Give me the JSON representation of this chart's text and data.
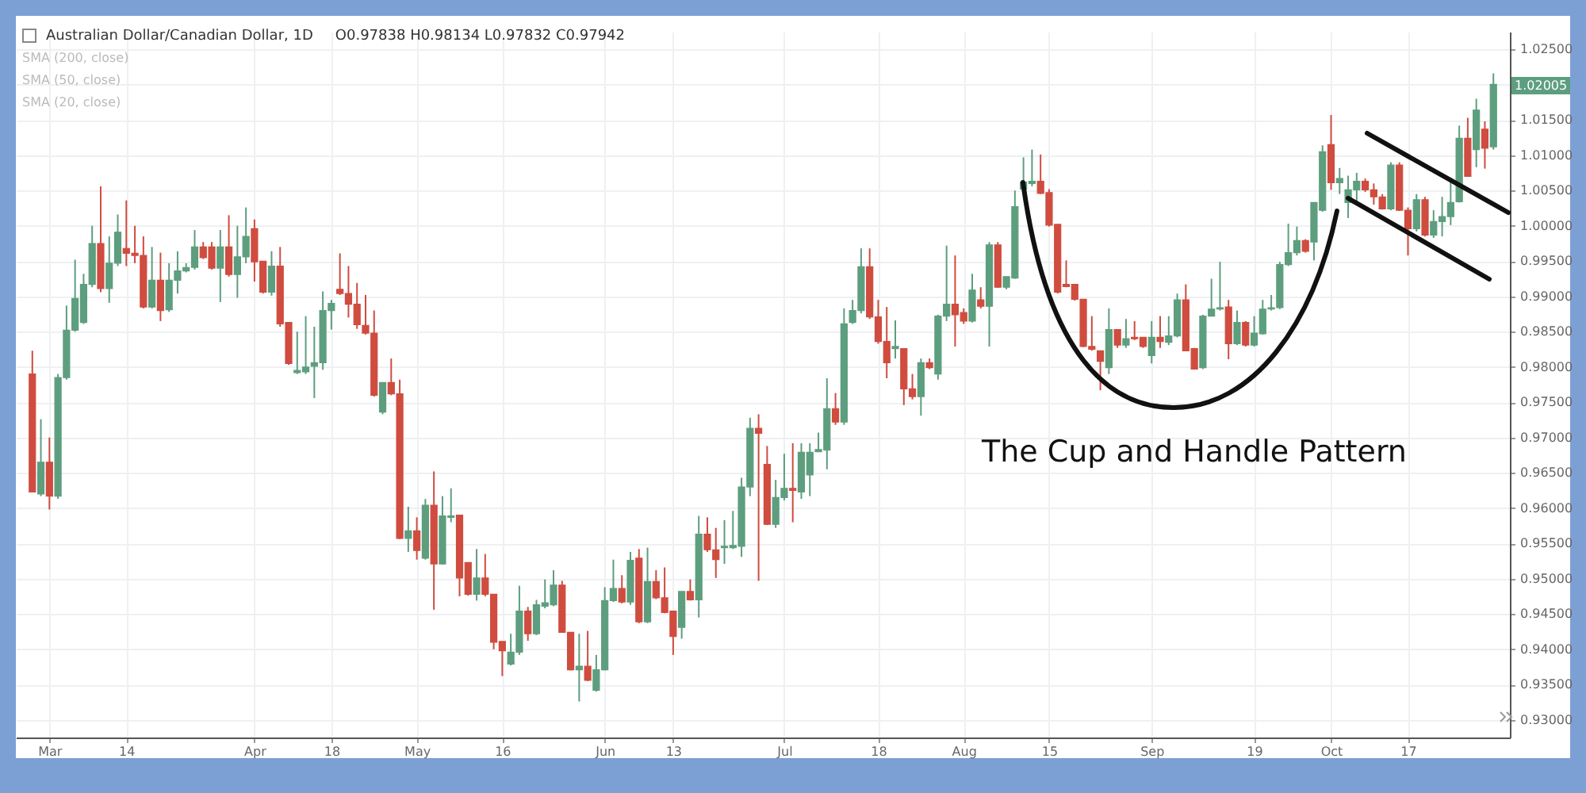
{
  "chart_data": {
    "type": "candlestick",
    "title": "Australian Dollar/Canadian Dollar, 1D",
    "subtitle": "O0.97838 H0.98134 L0.97832 C0.97942",
    "annotations": [
      "SMA (200, close)",
      "SMA (50, close)",
      "SMA (20, close)",
      "The Cup and Handle Pattern",
      "1.02005"
    ],
    "grid": true,
    "ylim": [
      0.9275,
      1.0275
    ],
    "yticks": [
      {
        "value": 0.93,
        "label": "0.93000"
      },
      {
        "value": 0.935,
        "label": "0.93500"
      },
      {
        "value": 0.94,
        "label": "0.94000"
      },
      {
        "value": 0.945,
        "label": "0.94500"
      },
      {
        "value": 0.95,
        "label": "0.95000"
      },
      {
        "value": 0.955,
        "label": "0.95500"
      },
      {
        "value": 0.96,
        "label": "0.96000"
      },
      {
        "value": 0.965,
        "label": "0.96500"
      },
      {
        "value": 0.97,
        "label": "0.97000"
      },
      {
        "value": 0.975,
        "label": "0.97500"
      },
      {
        "value": 0.98,
        "label": "0.98000"
      },
      {
        "value": 0.985,
        "label": "0.98500"
      },
      {
        "value": 0.99,
        "label": "0.99000"
      },
      {
        "value": 0.995,
        "label": "0.99500"
      },
      {
        "value": 1.0,
        "label": "1.00000"
      },
      {
        "value": 1.005,
        "label": "1.00500"
      },
      {
        "value": 1.01,
        "label": "1.01000"
      },
      {
        "value": 1.015,
        "label": "1.01500"
      },
      {
        "value": 1.02,
        "label": null
      },
      {
        "value": 1.025,
        "label": "1.02500"
      }
    ],
    "categories": [
      null,
      null,
      "Mar",
      null,
      null,
      null,
      null,
      null,
      null,
      null,
      null,
      "14",
      null,
      null,
      null,
      null,
      null,
      null,
      null,
      null,
      null,
      null,
      null,
      null,
      null,
      null,
      "Apr",
      null,
      null,
      null,
      null,
      null,
      null,
      null,
      null,
      "18",
      null,
      null,
      null,
      null,
      null,
      null,
      null,
      null,
      null,
      "May",
      null,
      null,
      null,
      null,
      null,
      null,
      null,
      null,
      null,
      "16",
      null,
      null,
      null,
      null,
      null,
      null,
      null,
      null,
      null,
      null,
      null,
      "Jun",
      null,
      null,
      null,
      null,
      null,
      null,
      null,
      "13",
      null,
      null,
      null,
      null,
      null,
      null,
      null,
      null,
      null,
      null,
      null,
      null,
      "Jul",
      null,
      null,
      null,
      null,
      null,
      null,
      null,
      null,
      null,
      null,
      "18",
      null,
      null,
      null,
      null,
      null,
      null,
      null,
      null,
      null,
      "Aug",
      null,
      null,
      null,
      null,
      null,
      null,
      null,
      null,
      null,
      "15",
      null,
      null,
      null,
      null,
      null,
      null,
      null,
      null,
      null,
      null,
      null,
      "Sep",
      null,
      null,
      null,
      null,
      null,
      null,
      null,
      null,
      null,
      null,
      null,
      "19",
      null,
      null,
      null,
      null,
      null,
      null,
      null,
      null,
      "Oct",
      null,
      null,
      null,
      null,
      null,
      null,
      null,
      null,
      "17",
      null,
      null,
      null,
      null,
      null,
      null,
      null,
      null,
      null,
      null
    ],
    "ohlc": [
      [
        0.979,
        0.9823,
        0.9623,
        0.9623
      ],
      [
        0.962,
        0.9726,
        0.9617,
        0.9665
      ],
      [
        0.9665,
        0.97,
        0.9598,
        0.9617
      ],
      [
        0.9617,
        0.979,
        0.9613,
        0.9785
      ],
      [
        0.9785,
        0.9887,
        0.9782,
        0.9852
      ],
      [
        0.9852,
        0.9952,
        0.985,
        0.9897
      ],
      [
        0.9863,
        0.9932,
        0.9861,
        0.9917
      ],
      [
        0.9917,
        1.0,
        0.9913,
        0.9975
      ],
      [
        0.9975,
        1.0056,
        0.9906,
        0.9911
      ],
      [
        0.9911,
        0.9985,
        0.9891,
        0.9947
      ],
      [
        0.9947,
        1.0016,
        0.9943,
        0.9991
      ],
      [
        0.9968,
        1.0036,
        0.9943,
        0.9961
      ],
      [
        0.9961,
        1.0,
        0.9947,
        0.9958
      ],
      [
        0.9958,
        0.9985,
        0.9883,
        0.9885
      ],
      [
        0.9885,
        0.997,
        0.9883,
        0.9923
      ],
      [
        0.9923,
        0.9962,
        0.9865,
        0.988
      ],
      [
        0.9881,
        0.9947,
        0.9878,
        0.9923
      ],
      [
        0.9923,
        0.9964,
        0.9904,
        0.9936
      ],
      [
        0.9936,
        0.9947,
        0.9934,
        0.9941
      ],
      [
        0.9941,
        0.9994,
        0.9938,
        0.997
      ],
      [
        0.997,
        0.9977,
        0.9953,
        0.9955
      ],
      [
        0.997,
        0.9977,
        0.9938,
        0.994
      ],
      [
        0.994,
        0.9994,
        0.9892,
        0.997
      ],
      [
        0.997,
        1.0015,
        0.9928,
        0.9931
      ],
      [
        0.9931,
        1.0,
        0.9898,
        0.9956
      ],
      [
        0.9956,
        1.0026,
        0.9947,
        0.9985
      ],
      [
        0.9996,
        1.0009,
        0.9921,
        0.9949
      ],
      [
        0.995,
        0.995,
        0.9904,
        0.9906
      ],
      [
        0.9906,
        0.9964,
        0.9901,
        0.9943
      ],
      [
        0.9943,
        0.997,
        0.9857,
        0.9861
      ],
      [
        0.9863,
        0.9863,
        0.9803,
        0.9805
      ],
      [
        0.9792,
        0.985,
        0.979,
        0.9795
      ],
      [
        0.9793,
        0.9872,
        0.979,
        0.98
      ],
      [
        0.9801,
        0.9857,
        0.9756,
        0.9806
      ],
      [
        0.9806,
        0.9907,
        0.9796,
        0.988
      ],
      [
        0.988,
        0.9895,
        0.9853,
        0.989
      ],
      [
        0.991,
        0.9961,
        0.9902,
        0.9904
      ],
      [
        0.9904,
        0.9943,
        0.987,
        0.9889
      ],
      [
        0.9889,
        0.9919,
        0.9854,
        0.986
      ],
      [
        0.9859,
        0.9902,
        0.9846,
        0.9848
      ],
      [
        0.9848,
        0.988,
        0.9758,
        0.976
      ],
      [
        0.9736,
        0.9778,
        0.9733,
        0.9778
      ],
      [
        0.9778,
        0.9812,
        0.976,
        0.9762
      ],
      [
        0.9762,
        0.9782,
        0.9556,
        0.9557
      ],
      [
        0.9557,
        0.9602,
        0.9538,
        0.9568
      ],
      [
        0.9568,
        0.9587,
        0.9527,
        0.954
      ],
      [
        0.9529,
        0.9613,
        0.9527,
        0.9604
      ],
      [
        0.9604,
        0.9652,
        0.9456,
        0.9521
      ],
      [
        0.9521,
        0.9617,
        0.952,
        0.9589
      ],
      [
        0.9587,
        0.9628,
        0.958,
        0.9589
      ],
      [
        0.959,
        0.959,
        0.9475,
        0.9501
      ],
      [
        0.9523,
        0.9523,
        0.9476,
        0.9478
      ],
      [
        0.9478,
        0.9542,
        0.9469,
        0.9501
      ],
      [
        0.9501,
        0.9535,
        0.9475,
        0.9478
      ],
      [
        0.9478,
        0.9478,
        0.94,
        0.941
      ],
      [
        0.9411,
        0.9411,
        0.9362,
        0.9398
      ],
      [
        0.9379,
        0.9422,
        0.9377,
        0.9396
      ],
      [
        0.9396,
        0.949,
        0.9392,
        0.9454
      ],
      [
        0.9454,
        0.946,
        0.9412,
        0.9422
      ],
      [
        0.9422,
        0.947,
        0.942,
        0.9463
      ],
      [
        0.9461,
        0.9499,
        0.9458,
        0.9466
      ],
      [
        0.9463,
        0.9512,
        0.9461,
        0.9491
      ],
      [
        0.9491,
        0.9497,
        0.9424,
        0.9424
      ],
      [
        0.9424,
        0.9424,
        0.937,
        0.9371
      ],
      [
        0.9371,
        0.9422,
        0.9326,
        0.9376
      ],
      [
        0.9376,
        0.9426,
        0.9355,
        0.9356
      ],
      [
        0.9342,
        0.9392,
        0.934,
        0.9371
      ],
      [
        0.9371,
        0.9488,
        0.937,
        0.9469
      ],
      [
        0.9469,
        0.9527,
        0.9467,
        0.9486
      ],
      [
        0.9486,
        0.9505,
        0.9465,
        0.9467
      ],
      [
        0.9467,
        0.9538,
        0.9463,
        0.9526
      ],
      [
        0.9529,
        0.9542,
        0.9437,
        0.9439
      ],
      [
        0.9439,
        0.9544,
        0.9437,
        0.9496
      ],
      [
        0.9496,
        0.9512,
        0.9471,
        0.9473
      ],
      [
        0.9473,
        0.9516,
        0.9451,
        0.9452
      ],
      [
        0.9454,
        0.9454,
        0.9392,
        0.9418
      ],
      [
        0.9431,
        0.9482,
        0.9415,
        0.9482
      ],
      [
        0.9482,
        0.9499,
        0.9469,
        0.947
      ],
      [
        0.947,
        0.9589,
        0.9445,
        0.9563
      ],
      [
        0.9563,
        0.9587,
        0.9538,
        0.9541
      ],
      [
        0.9541,
        0.9572,
        0.9501,
        0.9527
      ],
      [
        0.9544,
        0.9583,
        0.9521,
        0.9546
      ],
      [
        0.9544,
        0.9596,
        0.9542,
        0.9547
      ],
      [
        0.9546,
        0.9643,
        0.9531,
        0.963
      ],
      [
        0.963,
        0.9728,
        0.9617,
        0.9713
      ],
      [
        0.9713,
        0.9733,
        0.9497,
        0.9706
      ],
      [
        0.9662,
        0.9688,
        0.9576,
        0.9577
      ],
      [
        0.9577,
        0.964,
        0.9572,
        0.9615
      ],
      [
        0.9615,
        0.9677,
        0.9611,
        0.9628
      ],
      [
        0.9628,
        0.9692,
        0.958,
        0.9625
      ],
      [
        0.9623,
        0.9692,
        0.9613,
        0.9679
      ],
      [
        0.9647,
        0.9692,
        0.9617,
        0.9679
      ],
      [
        0.968,
        0.9707,
        0.968,
        0.9683
      ],
      [
        0.9682,
        0.9784,
        0.9655,
        0.9741
      ],
      [
        0.9741,
        0.9763,
        0.9718,
        0.9722
      ],
      [
        0.9722,
        0.9883,
        0.9718,
        0.9861
      ],
      [
        0.9863,
        0.9895,
        0.9861,
        0.988
      ],
      [
        0.988,
        0.9968,
        0.9876,
        0.9942
      ],
      [
        0.9942,
        0.9968,
        0.9868,
        0.9871
      ],
      [
        0.9871,
        0.9895,
        0.9833,
        0.9836
      ],
      [
        0.9836,
        0.9885,
        0.9784,
        0.9806
      ],
      [
        0.9826,
        0.9866,
        0.9812,
        0.9829
      ],
      [
        0.9826,
        0.9826,
        0.9746,
        0.9769
      ],
      [
        0.9769,
        0.979,
        0.9754,
        0.9758
      ],
      [
        0.9758,
        0.9812,
        0.9731,
        0.9806
      ],
      [
        0.9806,
        0.9812,
        0.9797,
        0.9799
      ],
      [
        0.979,
        0.9874,
        0.9782,
        0.9872
      ],
      [
        0.9872,
        0.9972,
        0.9865,
        0.9889
      ],
      [
        0.9889,
        0.9958,
        0.9829,
        0.9874
      ],
      [
        0.9877,
        0.9883,
        0.9861,
        0.9865
      ],
      [
        0.9865,
        0.9932,
        0.9863,
        0.9909
      ],
      [
        0.9895,
        0.9913,
        0.9883,
        0.9886
      ],
      [
        0.9886,
        0.9977,
        0.9829,
        0.9973
      ],
      [
        0.9973,
        0.9977,
        0.9912,
        0.9913
      ],
      [
        0.9913,
        0.9928,
        0.991,
        0.9928
      ],
      [
        0.9926,
        1.005,
        0.9925,
        1.0027
      ],
      [
        1.0052,
        1.0097,
        1.0048,
        1.0062
      ],
      [
        1.006,
        1.0108,
        1.0056,
        1.0063
      ],
      [
        1.0063,
        1.0101,
        1.0045,
        1.0046
      ],
      [
        1.0047,
        1.0052,
        0.9999,
        1.0001
      ],
      [
        1.0002,
        1.0002,
        0.9904,
        0.9906
      ],
      [
        0.9917,
        0.9951,
        0.9913,
        0.9914
      ],
      [
        0.9917,
        0.9917,
        0.9894,
        0.9896
      ],
      [
        0.9896,
        0.9896,
        0.9828,
        0.9829
      ],
      [
        0.9829,
        0.9872,
        0.9823,
        0.9825
      ],
      [
        0.9823,
        0.9823,
        0.9767,
        0.9808
      ],
      [
        0.9799,
        0.9883,
        0.979,
        0.9853
      ],
      [
        0.9853,
        0.9853,
        0.9827,
        0.9831
      ],
      [
        0.9831,
        0.9868,
        0.9827,
        0.984
      ],
      [
        0.9842,
        0.9865,
        0.9838,
        0.984
      ],
      [
        0.9842,
        0.9842,
        0.9827,
        0.9829
      ],
      [
        0.9816,
        0.9865,
        0.9805,
        0.9842
      ],
      [
        0.9842,
        0.9872,
        0.9827,
        0.9836
      ],
      [
        0.9835,
        0.9872,
        0.9831,
        0.9844
      ],
      [
        0.9844,
        0.9904,
        0.9842,
        0.9895
      ],
      [
        0.9895,
        0.9917,
        0.9823,
        0.9823
      ],
      [
        0.9826,
        0.9827,
        0.9797,
        0.9797
      ],
      [
        0.9799,
        0.9874,
        0.9797,
        0.9872
      ],
      [
        0.9872,
        0.9925,
        0.9872,
        0.9882
      ],
      [
        0.9882,
        0.9949,
        0.988,
        0.9884
      ],
      [
        0.9885,
        0.9895,
        0.9811,
        0.9833
      ],
      [
        0.9833,
        0.988,
        0.9831,
        0.9863
      ],
      [
        0.9863,
        0.9865,
        0.9829,
        0.9831
      ],
      [
        0.9831,
        0.9872,
        0.9829,
        0.9848
      ],
      [
        0.9847,
        0.9895,
        0.9846,
        0.9882
      ],
      [
        0.9882,
        0.9902,
        0.988,
        0.9884
      ],
      [
        0.9884,
        0.9949,
        0.9882,
        0.9945
      ],
      [
        0.9945,
        1.0003,
        0.9943,
        0.9962
      ],
      [
        0.9962,
        0.9999,
        0.9958,
        0.9979
      ],
      [
        0.9979,
        0.9981,
        0.9962,
        0.9964
      ],
      [
        0.9977,
        1.0033,
        0.9951,
        1.0033
      ],
      [
        1.0022,
        1.0114,
        1.002,
        1.0105
      ],
      [
        1.0115,
        1.0157,
        1.0051,
        1.0061
      ],
      [
        1.0061,
        1.0082,
        1.0045,
        1.0067
      ],
      [
        1.0033,
        1.0071,
        1.0011,
        1.0051
      ],
      [
        1.0051,
        1.0075,
        1.0031,
        1.0063
      ],
      [
        1.0063,
        1.0067,
        1.0048,
        1.0051
      ],
      [
        1.0051,
        1.006,
        1.003,
        1.0041
      ],
      [
        1.0041,
        1.0045,
        1.0023,
        1.0024
      ],
      [
        1.0024,
        1.009,
        1.0022,
        1.0086
      ],
      [
        1.0086,
        1.009,
        1.0021,
        1.0022
      ],
      [
        1.0022,
        1.0026,
        0.9958,
        0.9996
      ],
      [
        0.9996,
        1.0045,
        0.9992,
        1.0037
      ],
      [
        1.0037,
        1.0041,
        0.9985,
        0.9987
      ],
      [
        0.9987,
        1.0022,
        0.9983,
        1.0006
      ],
      [
        1.0006,
        1.0041,
        0.9985,
        1.0013
      ],
      [
        1.0013,
        1.0063,
        1.0001,
        1.0033
      ],
      [
        1.0034,
        1.0142,
        1.0033,
        1.0124
      ],
      [
        1.0124,
        1.0153,
        1.007,
        1.007
      ],
      [
        1.0108,
        1.018,
        1.0083,
        1.0164
      ],
      [
        1.0137,
        1.0148,
        1.0081,
        1.011
      ],
      [
        1.0112,
        1.0216,
        1.0108,
        1.02005
      ]
    ],
    "colors": [
      "#cf4c3f",
      "#5d9e7e",
      "#cf4c3f",
      "#5d9e7e",
      "#5d9e7e",
      "#5d9e7e",
      "#5d9e7e",
      "#5d9e7e",
      "#cf4c3f",
      "#5d9e7e",
      "#5d9e7e",
      "#cf4c3f",
      "#cf4c3f",
      "#cf4c3f",
      "#5d9e7e",
      "#cf4c3f",
      "#5d9e7e",
      "#5d9e7e",
      "#5d9e7e",
      "#5d9e7e",
      "#cf4c3f",
      "#cf4c3f",
      "#5d9e7e",
      "#cf4c3f",
      "#5d9e7e",
      "#5d9e7e",
      "#cf4c3f",
      "#cf4c3f",
      "#5d9e7e",
      "#cf4c3f",
      "#cf4c3f",
      "#5d9e7e",
      "#5d9e7e",
      "#5d9e7e",
      "#5d9e7e",
      "#5d9e7e",
      "#cf4c3f",
      "#cf4c3f",
      "#cf4c3f",
      "#cf4c3f",
      "#cf4c3f",
      "#5d9e7e",
      "#cf4c3f",
      "#cf4c3f",
      "#5d9e7e",
      "#cf4c3f",
      "#5d9e7e",
      "#cf4c3f",
      "#5d9e7e",
      "#5d9e7e",
      "#cf4c3f",
      "#cf4c3f",
      "#5d9e7e",
      "#cf4c3f",
      "#cf4c3f",
      "#cf4c3f",
      "#5d9e7e",
      "#5d9e7e",
      "#cf4c3f",
      "#5d9e7e",
      "#5d9e7e",
      "#5d9e7e",
      "#cf4c3f",
      "#cf4c3f",
      "#5d9e7e",
      "#cf4c3f",
      "#5d9e7e",
      "#5d9e7e",
      "#5d9e7e",
      "#cf4c3f",
      "#5d9e7e",
      "#cf4c3f",
      "#5d9e7e",
      "#cf4c3f",
      "#cf4c3f",
      "#cf4c3f",
      "#5d9e7e",
      "#cf4c3f",
      "#5d9e7e",
      "#cf4c3f",
      "#cf4c3f",
      "#5d9e7e",
      "#5d9e7e",
      "#5d9e7e",
      "#5d9e7e",
      "#cf4c3f",
      "#cf4c3f",
      "#5d9e7e",
      "#5d9e7e",
      "#cf4c3f",
      "#5d9e7e",
      "#5d9e7e",
      "#5d9e7e",
      "#5d9e7e",
      "#cf4c3f",
      "#5d9e7e",
      "#5d9e7e",
      "#5d9e7e",
      "#cf4c3f",
      "#cf4c3f",
      "#cf4c3f",
      "#5d9e7e",
      "#cf4c3f",
      "#cf4c3f",
      "#5d9e7e",
      "#cf4c3f",
      "#5d9e7e",
      "#5d9e7e",
      "#cf4c3f",
      "#cf4c3f",
      "#5d9e7e",
      "#cf4c3f",
      "#5d9e7e",
      "#cf4c3f",
      "#5d9e7e",
      "#5d9e7e",
      "#5d9e7e",
      "#5d9e7e",
      "#cf4c3f",
      "#cf4c3f",
      "#cf4c3f",
      "#cf4c3f",
      "#cf4c3f",
      "#cf4c3f",
      "#cf4c3f",
      "#cf4c3f",
      "#5d9e7e",
      "#cf4c3f",
      "#5d9e7e",
      "#cf4c3f",
      "#cf4c3f",
      "#5d9e7e",
      "#cf4c3f",
      "#5d9e7e",
      "#5d9e7e",
      "#cf4c3f",
      "#cf4c3f",
      "#5d9e7e",
      "#5d9e7e",
      "#5d9e7e",
      "#cf4c3f",
      "#5d9e7e",
      "#cf4c3f",
      "#5d9e7e",
      "#5d9e7e",
      "#5d9e7e",
      "#5d9e7e",
      "#5d9e7e",
      "#5d9e7e",
      "#cf4c3f",
      "#5d9e7e",
      "#5d9e7e",
      "#cf4c3f",
      "#5d9e7e",
      "#5d9e7e",
      "#5d9e7e",
      "#cf4c3f",
      "#cf4c3f",
      "#cf4c3f",
      "#5d9e7e",
      "#cf4c3f",
      "#cf4c3f",
      "#5d9e7e",
      "#cf4c3f",
      "#5d9e7e",
      "#5d9e7e",
      "#5d9e7e",
      "#5d9e7e",
      "#cf4c3f",
      "#5d9e7e",
      "#cf4c3f",
      "#5d9e7e"
    ]
  }
}
